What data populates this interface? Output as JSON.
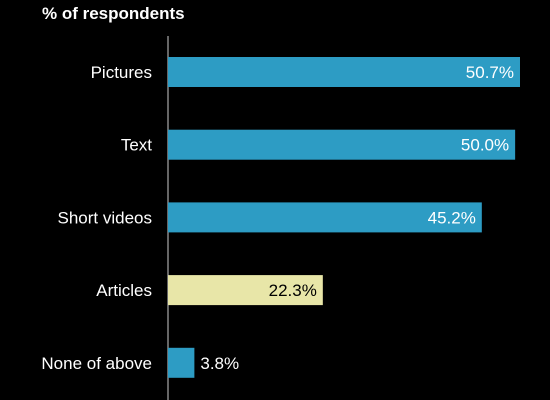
{
  "chart_data": {
    "type": "bar",
    "orientation": "horizontal",
    "title": "% of respondents",
    "categories": [
      "Pictures",
      "Text",
      "Short videos",
      "Articles",
      "None of above"
    ],
    "values": [
      50.7,
      50.0,
      45.2,
      22.3,
      3.8
    ],
    "value_labels": [
      "50.7%",
      "50.0%",
      "45.2%",
      "22.3%",
      "3.8%"
    ],
    "xlim": [
      0,
      50.7
    ],
    "grid": false,
    "legend": "none",
    "colors": {
      "background": "#000000",
      "bar_default": "#2d9cc4",
      "bar_highlight": "#e8e6a8",
      "axis": "#cccccc",
      "text": "#ffffff",
      "highlight_text": "#000000"
    },
    "highlight_index": 3
  }
}
